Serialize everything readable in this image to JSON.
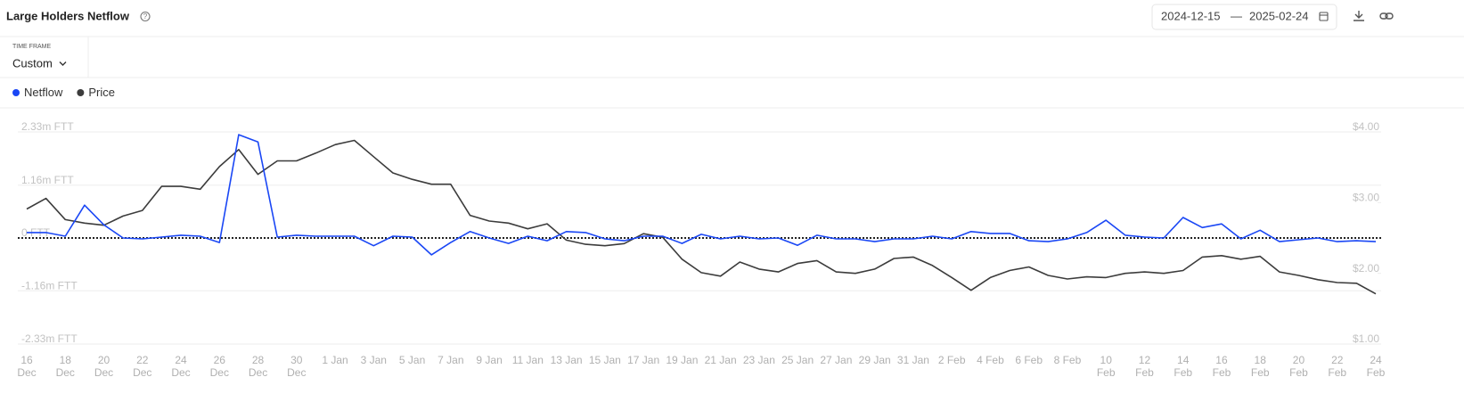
{
  "header": {
    "title": "Large Holders Netflow",
    "date_start": "2024-12-15",
    "date_separator": "—",
    "date_end": "2025-02-24"
  },
  "time_frame": {
    "label": "TIME FRAME",
    "value": "Custom"
  },
  "chart_data": {
    "type": "line",
    "categories": [
      "16 Dec",
      null,
      "18 Dec",
      null,
      "20 Dec",
      null,
      "22 Dec",
      null,
      "24 Dec",
      null,
      "26 Dec",
      null,
      "28 Dec",
      null,
      "30 Dec",
      null,
      "1 Jan",
      null,
      "3 Jan",
      null,
      "5 Jan",
      null,
      "7 Jan",
      null,
      "9 Jan",
      null,
      "11 Jan",
      null,
      "13 Jan",
      null,
      "15 Jan",
      null,
      "17 Jan",
      null,
      "19 Jan",
      null,
      "21 Jan",
      null,
      "23 Jan",
      null,
      "25 Jan",
      null,
      "27 Jan",
      null,
      "29 Jan",
      null,
      "31 Jan",
      null,
      "2 Feb",
      null,
      "4 Feb",
      null,
      "6 Feb",
      null,
      "8 Feb",
      null,
      "10 Feb",
      null,
      "12 Feb",
      null,
      "14 Feb",
      null,
      "16 Feb",
      null,
      "18 Feb",
      null,
      "20 Feb",
      null,
      "22 Feb",
      null,
      "24 Feb"
    ],
    "series": [
      {
        "name": "Netflow",
        "color": "#1a47f5",
        "values": [
          120000,
          120000,
          40000,
          720000,
          290000,
          0,
          -20000,
          20000,
          60000,
          40000,
          -100000,
          2270000,
          2110000,
          20000,
          60000,
          40000,
          40000,
          40000,
          -170000,
          40000,
          20000,
          -370000,
          -100000,
          140000,
          0,
          -120000,
          40000,
          -60000,
          140000,
          120000,
          -20000,
          -60000,
          40000,
          40000,
          -120000,
          80000,
          -20000,
          40000,
          -20000,
          0,
          -160000,
          60000,
          -20000,
          -20000,
          -80000,
          -20000,
          -20000,
          40000,
          -20000,
          140000,
          100000,
          100000,
          -60000,
          -80000,
          -20000,
          120000,
          390000,
          60000,
          20000,
          0,
          450000,
          230000,
          310000,
          -20000,
          170000,
          -80000,
          -40000,
          0,
          -80000,
          -60000,
          -80000
        ]
      },
      {
        "name": "Price",
        "color": "#3c3c3c",
        "axis": "y2",
        "values": [
          2.91,
          3.06,
          2.76,
          2.71,
          2.68,
          2.81,
          2.89,
          3.23,
          3.23,
          3.19,
          3.51,
          3.75,
          3.4,
          3.59,
          3.59,
          3.7,
          3.82,
          3.88,
          3.65,
          3.42,
          3.33,
          3.26,
          3.26,
          2.82,
          2.74,
          2.71,
          2.63,
          2.7,
          2.47,
          2.41,
          2.39,
          2.42,
          2.56,
          2.51,
          2.2,
          2.01,
          1.96,
          2.16,
          2.06,
          2.02,
          2.14,
          2.18,
          2.02,
          2.0,
          2.06,
          2.21,
          2.23,
          2.11,
          1.94,
          1.76,
          1.94,
          2.04,
          2.09,
          1.97,
          1.92,
          1.95,
          1.94,
          2.0,
          2.02,
          2.0,
          2.04,
          2.23,
          2.25,
          2.2,
          2.24,
          2.02,
          1.97,
          1.91,
          1.87,
          1.86,
          1.71
        ]
      }
    ],
    "ylim": [
      -2330000,
      2330000
    ],
    "yticks": [
      {
        "value": 2330000,
        "label": "2.33m FTT"
      },
      {
        "value": 1160000,
        "label": "1.16m FTT"
      },
      {
        "value": 0,
        "label": "0 FTT"
      },
      {
        "value": -1160000,
        "label": "-1.16m FTT"
      },
      {
        "value": -2330000,
        "label": "-2.33m FTT"
      }
    ],
    "y2lim": [
      1,
      4
    ],
    "y2ticks": [
      {
        "value": 4,
        "label": "$4.00"
      },
      {
        "value": 3,
        "label": "$3.00"
      },
      {
        "value": 2,
        "label": "$2.00"
      },
      {
        "value": 1,
        "label": "$1.00"
      }
    ],
    "grid": true
  }
}
